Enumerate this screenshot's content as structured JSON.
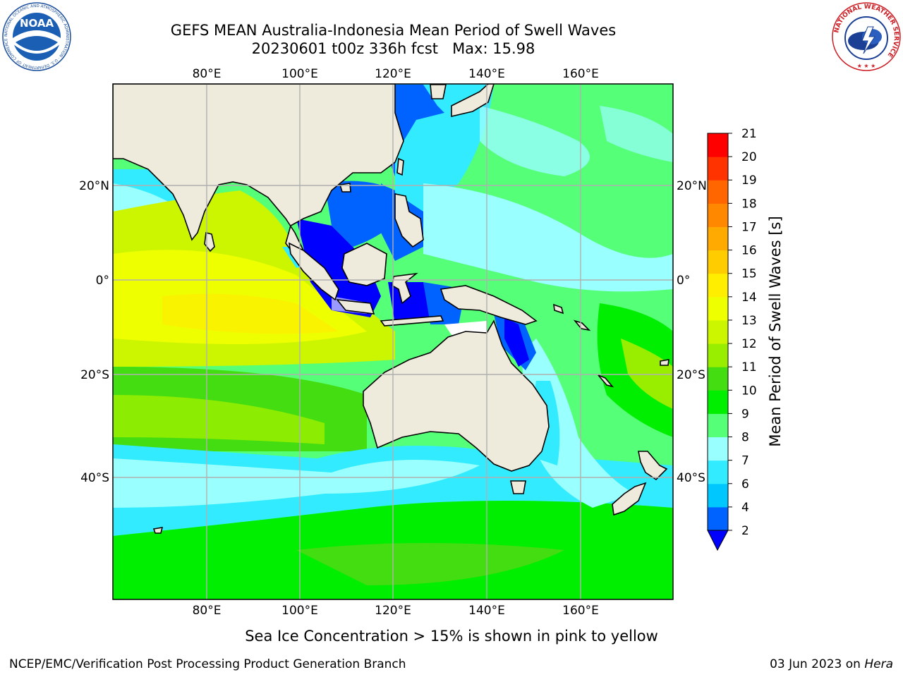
{
  "title": {
    "line1": "GEFS MEAN Australia-Indonesia Mean Period of Swell Waves",
    "line2": "20230601 t00z 336h fcst   Max: 15.98"
  },
  "map": {
    "lon_range": [
      60,
      180
    ],
    "lat_range": [
      -68,
      42
    ],
    "lon_ticks": [
      "80°E",
      "100°E",
      "120°E",
      "140°E",
      "160°E"
    ],
    "lat_ticks_left": [
      "20°N",
      "0°",
      "20°S",
      "40°S"
    ],
    "lat_ticks_right": [
      "20°N",
      "0°",
      "20°S",
      "40°S"
    ],
    "gridlines": true,
    "land_color": "#efebdc",
    "grid_color": "#b0b0b0"
  },
  "colorbar": {
    "label": "Mean Period of Swell Waves [s]",
    "ticks": [
      "2",
      "4",
      "6",
      "7",
      "8",
      "9",
      "10",
      "11",
      "12",
      "13",
      "14",
      "15",
      "16",
      "17",
      "18",
      "19",
      "20",
      "21"
    ],
    "colors": [
      "#0062ff",
      "#00c8ff",
      "#33ebff",
      "#99ffff",
      "#55ff77",
      "#00ee00",
      "#44dd11",
      "#99ee00",
      "#ccf500",
      "#eeff00",
      "#ffee00",
      "#ffcc00",
      "#ffaa00",
      "#ff8800",
      "#ff6600",
      "#ff3300",
      "#ff0000"
    ],
    "under_color": "#0000ff",
    "extend": "min"
  },
  "caption": "Sea Ice Concentration > 15% is shown in pink to yellow",
  "footer": {
    "left": "NCEP/EMC/Verification Post Processing Product Generation Branch",
    "date": "03 Jun 2023 on ",
    "machine": "Hera"
  },
  "logos": {
    "noaa_text": "NOAA",
    "noaa_ring": "NATIONAL OCEANIC AND ATMOSPHERIC ADMINISTRATION · U.S. DEPARTMENT OF COMMERCE",
    "nws_ring": "NATIONAL WEATHER SERVICE"
  }
}
